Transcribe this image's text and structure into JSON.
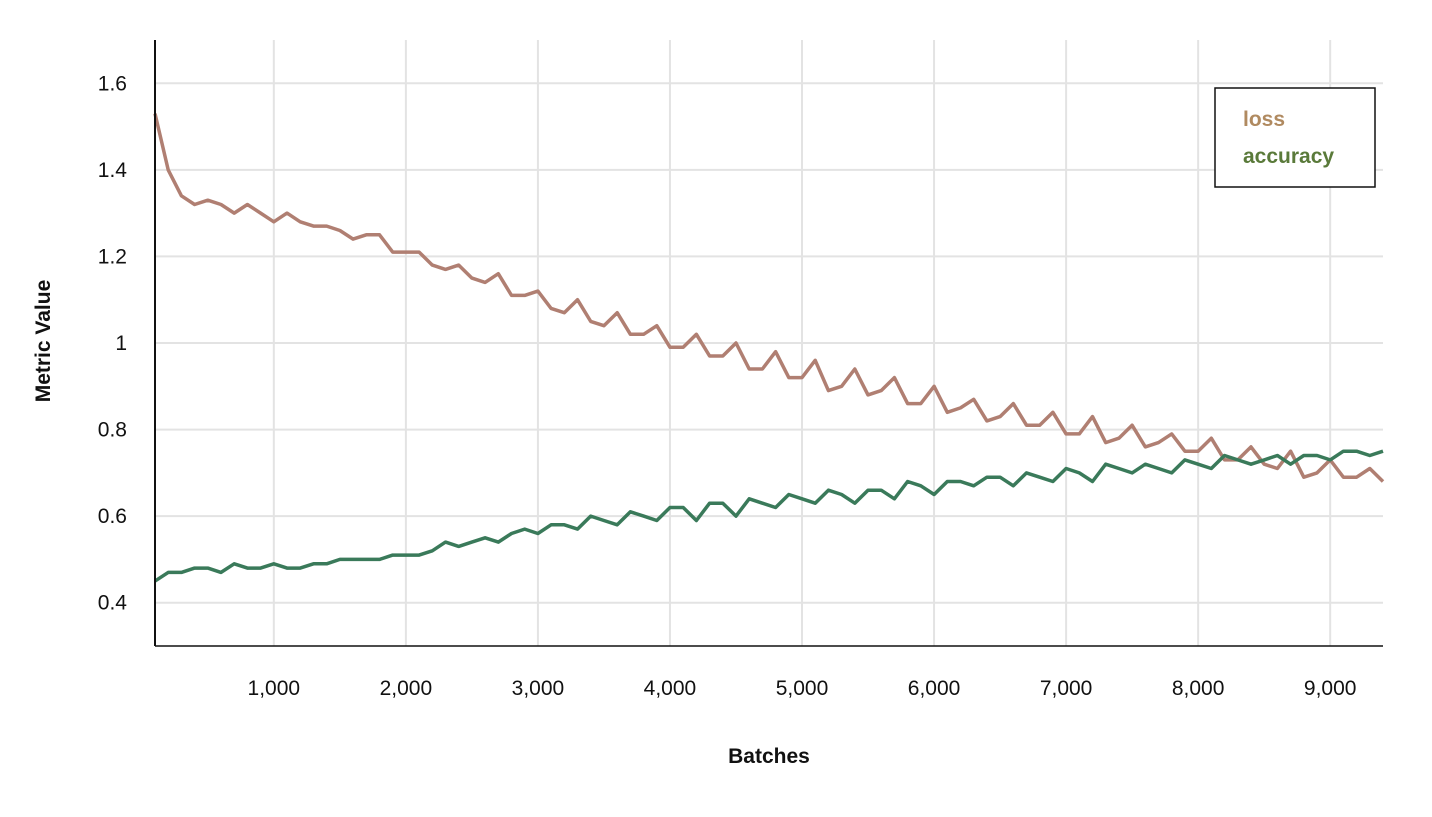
{
  "chart_data": {
    "type": "line",
    "xlabel": "Batches",
    "ylabel": "Metric Value",
    "xlim": [
      100,
      9400
    ],
    "ylim": [
      0.3,
      1.7
    ],
    "xticks": [
      1000,
      2000,
      3000,
      4000,
      5000,
      6000,
      7000,
      8000,
      9000
    ],
    "xtick_labels": [
      "1,000",
      "2,000",
      "3,000",
      "4,000",
      "5,000",
      "6,000",
      "7,000",
      "8,000",
      "9,000"
    ],
    "yticks": [
      0.4,
      0.6,
      0.8,
      1.0,
      1.2,
      1.4,
      1.6
    ],
    "ytick_labels": [
      "0.4",
      "0.6",
      "0.8",
      "1",
      "1.2",
      "1.4",
      "1.6"
    ],
    "grid": true,
    "legend_position": "top-right",
    "x": [
      100,
      200,
      300,
      400,
      500,
      600,
      700,
      800,
      900,
      1000,
      1100,
      1200,
      1300,
      1400,
      1500,
      1600,
      1700,
      1800,
      1900,
      2000,
      2100,
      2200,
      2300,
      2400,
      2500,
      2600,
      2700,
      2800,
      2900,
      3000,
      3100,
      3200,
      3300,
      3400,
      3500,
      3600,
      3700,
      3800,
      3900,
      4000,
      4100,
      4200,
      4300,
      4400,
      4500,
      4600,
      4700,
      4800,
      4900,
      5000,
      5100,
      5200,
      5300,
      5400,
      5500,
      5600,
      5700,
      5800,
      5900,
      6000,
      6100,
      6200,
      6300,
      6400,
      6500,
      6600,
      6700,
      6800,
      6900,
      7000,
      7100,
      7200,
      7300,
      7400,
      7500,
      7600,
      7700,
      7800,
      7900,
      8000,
      8100,
      8200,
      8300,
      8400,
      8500,
      8600,
      8700,
      8800,
      8900,
      9000,
      9100,
      9200,
      9300,
      9400
    ],
    "series": [
      {
        "name": "loss",
        "color": "#b07f72",
        "legend_color": "#b08a60",
        "values": [
          1.53,
          1.4,
          1.34,
          1.32,
          1.33,
          1.32,
          1.3,
          1.32,
          1.3,
          1.28,
          1.3,
          1.28,
          1.27,
          1.27,
          1.26,
          1.24,
          1.25,
          1.25,
          1.21,
          1.21,
          1.21,
          1.18,
          1.17,
          1.18,
          1.15,
          1.14,
          1.16,
          1.11,
          1.11,
          1.12,
          1.08,
          1.07,
          1.1,
          1.05,
          1.04,
          1.07,
          1.02,
          1.02,
          1.04,
          0.99,
          0.99,
          1.02,
          0.97,
          0.97,
          1.0,
          0.94,
          0.94,
          0.98,
          0.92,
          0.92,
          0.96,
          0.89,
          0.9,
          0.94,
          0.88,
          0.89,
          0.92,
          0.86,
          0.86,
          0.9,
          0.84,
          0.85,
          0.87,
          0.82,
          0.83,
          0.86,
          0.81,
          0.81,
          0.84,
          0.79,
          0.79,
          0.83,
          0.77,
          0.78,
          0.81,
          0.76,
          0.77,
          0.79,
          0.75,
          0.75,
          0.78,
          0.73,
          0.73,
          0.76,
          0.72,
          0.71,
          0.75,
          0.69,
          0.7,
          0.73,
          0.69,
          0.69,
          0.71,
          0.68
        ]
      },
      {
        "name": "accuracy",
        "color": "#3a7a5a",
        "legend_color": "#5a7a3a",
        "values": [
          0.45,
          0.47,
          0.47,
          0.48,
          0.48,
          0.47,
          0.49,
          0.48,
          0.48,
          0.49,
          0.48,
          0.48,
          0.49,
          0.49,
          0.5,
          0.5,
          0.5,
          0.5,
          0.51,
          0.51,
          0.51,
          0.52,
          0.54,
          0.53,
          0.54,
          0.55,
          0.54,
          0.56,
          0.57,
          0.56,
          0.58,
          0.58,
          0.57,
          0.6,
          0.59,
          0.58,
          0.61,
          0.6,
          0.59,
          0.62,
          0.62,
          0.59,
          0.63,
          0.63,
          0.6,
          0.64,
          0.63,
          0.62,
          0.65,
          0.64,
          0.63,
          0.66,
          0.65,
          0.63,
          0.66,
          0.66,
          0.64,
          0.68,
          0.67,
          0.65,
          0.68,
          0.68,
          0.67,
          0.69,
          0.69,
          0.67,
          0.7,
          0.69,
          0.68,
          0.71,
          0.7,
          0.68,
          0.72,
          0.71,
          0.7,
          0.72,
          0.71,
          0.7,
          0.73,
          0.72,
          0.71,
          0.74,
          0.73,
          0.72,
          0.73,
          0.74,
          0.72,
          0.74,
          0.74,
          0.73,
          0.75,
          0.75,
          0.74,
          0.75
        ]
      }
    ]
  }
}
